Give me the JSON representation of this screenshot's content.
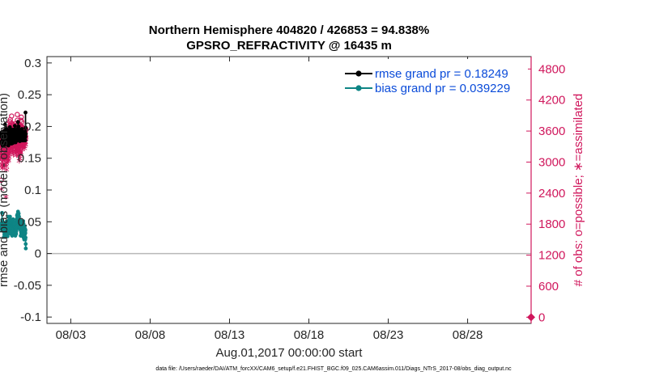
{
  "chart_data": {
    "type": "line",
    "title_line1": "Northern Hemisphere 404820 / 426853 = 94.838%",
    "title_line2": "GPSRO_REFRACTIVITY @ 16435 m",
    "xlabel": "Aug.01,2017 00:00:00 start",
    "ylabel_left": "rmse and bias (model - observation)",
    "ylabel_right": "# of obs: o=possible; ∗=assimilated",
    "footnote": "data file: /Users/raeder/DAI/ATM_forcXX/CAM6_setup/f.e21.FHIST_BGC.f09_025.CAM6assim.011/Diags_NTrS_2017-08/obs_diag_output.nc",
    "x_ticks": [
      "08/03",
      "08/08",
      "08/13",
      "08/18",
      "08/23",
      "08/28"
    ],
    "x_tick_days": [
      3,
      8,
      13,
      18,
      23,
      28
    ],
    "xlim_days": [
      1.5,
      32.0
    ],
    "ylim_left": [
      -0.11,
      0.31
    ],
    "y_ticks_left": [
      "-0.1",
      "-0.05",
      "0",
      "0.05",
      "0.1",
      "0.15",
      "0.2",
      "0.25",
      "0.3"
    ],
    "y_tick_values_left": [
      -0.1,
      -0.05,
      0,
      0.05,
      0.1,
      0.15,
      0.2,
      0.25,
      0.3
    ],
    "ylim_right": [
      -120,
      5040
    ],
    "y_ticks_right": [
      "0",
      "600",
      "1200",
      "1800",
      "2400",
      "3000",
      "3600",
      "4200",
      "4800"
    ],
    "y_tick_values_right": [
      0,
      600,
      1200,
      1800,
      2400,
      3000,
      3600,
      4200,
      4800
    ],
    "zero_line": 0,
    "legend": {
      "position": "top-right",
      "rmse_label": "rmse grand pr = 0.18249",
      "bias_label": "bias grand pr = 0.039229"
    },
    "colors": {
      "rmse": "#000000",
      "bias": "#0e8585",
      "obs": "#d0175c",
      "legend_text": "#0a4bd9",
      "zero_line": "#b8b8b8"
    },
    "series": [
      {
        "name": "rmse",
        "axis": "left",
        "values": [
          0.188,
          0.176,
          0.184,
          0.175,
          0.191,
          0.183,
          0.172,
          0.185,
          0.178,
          0.187,
          0.17,
          0.182,
          0.176,
          0.184,
          0.179,
          0.186,
          0.172,
          0.183,
          0.188,
          0.181,
          0.193,
          0.176,
          0.184,
          0.171,
          0.181,
          0.187,
          0.179,
          0.182,
          0.203,
          0.185,
          0.177,
          0.182,
          0.189,
          0.172,
          0.186,
          0.179,
          0.197,
          0.183,
          0.178,
          0.188,
          0.185,
          0.176,
          0.191,
          0.179,
          0.173,
          0.182,
          0.187,
          0.194,
          0.178,
          0.183,
          0.175,
          0.186,
          0.17,
          0.18,
          0.188,
          0.177,
          0.184,
          0.192,
          0.181,
          0.176,
          0.187,
          0.179,
          0.185,
          0.199,
          0.182,
          0.177,
          0.188,
          0.181,
          0.174,
          0.185,
          0.192,
          0.178,
          0.183,
          0.188,
          0.186,
          0.173,
          0.181,
          0.189,
          0.195,
          0.176,
          0.182,
          0.187,
          0.179,
          0.184,
          0.178,
          0.19,
          0.174,
          0.183,
          0.187,
          0.181,
          0.186,
          0.178,
          0.195,
          0.184,
          0.176,
          0.19,
          0.182,
          0.188,
          0.177,
          0.185,
          0.201,
          0.183,
          0.179,
          0.189,
          0.186,
          0.175,
          0.188,
          0.182,
          0.192,
          0.178,
          0.185,
          0.19,
          0.194,
          0.18,
          0.187,
          0.183,
          0.178,
          0.196,
          0.188,
          0.182,
          0.186,
          0.181,
          0.193,
          0.207,
          0.184,
          0.191,
          0.186,
          0.2,
          0.185,
          0.179,
          0.19,
          0.186,
          0.195,
          0.181,
          0.188,
          0.183,
          0.177,
          0.184,
          0.191,
          0.186,
          0.18,
          0.188,
          0.182,
          0.192,
          0.185,
          0.179,
          0.187,
          0.181,
          0.193,
          0.183,
          0.178,
          0.189,
          0.196,
          0.181,
          0.187,
          0.184,
          0.178,
          0.192,
          0.185,
          0.18,
          0.187,
          0.182,
          0.186,
          0.181,
          0.188,
          0.178,
          0.186,
          0.183,
          0.189,
          0.18,
          0.186,
          0.183,
          0.179,
          0.187,
          0.182,
          0.192,
          0.178,
          0.184,
          0.222,
          0.198,
          0.188
        ]
      },
      {
        "name": "bias",
        "axis": "left",
        "values": [
          0.043,
          0.038,
          0.045,
          0.044,
          0.046,
          0.039,
          0.049,
          0.064,
          0.053,
          0.044,
          0.041,
          0.045,
          0.039,
          0.042,
          0.044,
          0.036,
          0.041,
          0.04,
          0.037,
          0.043,
          0.039,
          0.041,
          0.035,
          0.038,
          0.026,
          0.039,
          0.034,
          0.043,
          0.03,
          0.041,
          0.045,
          0.036,
          0.038,
          0.027,
          0.046,
          0.04,
          0.036,
          0.042,
          0.048,
          0.037,
          0.043,
          0.031,
          0.047,
          0.044,
          0.041,
          0.05,
          0.039,
          0.034,
          0.047,
          0.037,
          0.039,
          0.049,
          0.043,
          0.03,
          0.048,
          0.038,
          0.044,
          0.027,
          0.041,
          0.044,
          0.038,
          0.049,
          0.04,
          0.036,
          0.058,
          0.052,
          0.044,
          0.039,
          0.046,
          0.032,
          0.041,
          0.044,
          0.037,
          0.052,
          0.039,
          0.044,
          0.051,
          0.036,
          0.048,
          0.058,
          0.049,
          0.038,
          0.045,
          0.054,
          0.041,
          0.036,
          0.031,
          0.043,
          0.047,
          0.033,
          0.045,
          0.039,
          0.052,
          0.041,
          0.046,
          0.03,
          0.039,
          0.043,
          0.028,
          0.04,
          0.045,
          0.049,
          0.044,
          0.052,
          0.036,
          0.047,
          0.048,
          0.054,
          0.046,
          0.039,
          0.043,
          0.049,
          0.041,
          0.044,
          0.047,
          0.043,
          0.046,
          0.049,
          0.047,
          0.03,
          0.042,
          0.036,
          0.041,
          0.033,
          0.039,
          0.03,
          0.044,
          0.028,
          0.04,
          0.036,
          0.038,
          0.034,
          0.037,
          0.036,
          0.031,
          0.035,
          0.043,
          0.044,
          0.052,
          0.045,
          0.054,
          0.04,
          0.06,
          0.048,
          0.056,
          0.051,
          0.042,
          0.062,
          0.049,
          0.051,
          0.044,
          0.066,
          0.056,
          0.047,
          0.06,
          0.054,
          0.045,
          0.063,
          0.052,
          0.043,
          0.058,
          0.045,
          0.048,
          0.04,
          0.048,
          0.046,
          0.046,
          0.038,
          0.045,
          0.053,
          0.038,
          0.05,
          0.04,
          0.038,
          0.045,
          0.028,
          0.046,
          0.042,
          0.034,
          0.043,
          0.032,
          0.049,
          0.041,
          0.029,
          0.044,
          0.038,
          0.043,
          0.028,
          0.04,
          0.04,
          0.046,
          0.03,
          0.044,
          0.036,
          0.04,
          0.027,
          0.042,
          0.032,
          0.051,
          0.035,
          0.047,
          0.04,
          0.025,
          0.043,
          0.031,
          0.034,
          0.038,
          0.022,
          0.04,
          0.035,
          0.031,
          0.043,
          0.03,
          0.026,
          0.039,
          0.034,
          0.022,
          0.032,
          0.037,
          0.025,
          0.015,
          0.008
        ]
      },
      {
        "name": "obs possible",
        "axis": "right",
        "marker": "o",
        "values": [
          2650,
          3350,
          3420,
          3120,
          3260,
          3330,
          3400,
          3180,
          3060,
          3520,
          3440,
          3120,
          3260,
          3430,
          3080,
          3290,
          3520,
          3480,
          3240,
          3330,
          3410,
          3270,
          3460,
          3590,
          3490,
          3350,
          3320,
          3310,
          3260,
          3600,
          3480,
          3320,
          3470,
          3140,
          3500,
          3040,
          3270,
          3420,
          3100,
          3160,
          3030,
          3340,
          3380,
          3450,
          3730,
          3310,
          3360,
          3220,
          3190,
          3560,
          3300,
          3530,
          3240,
          3470,
          3600,
          3210,
          3320,
          3440,
          3280,
          3530,
          3570,
          3550,
          3620,
          3350,
          3460,
          3360,
          3420,
          3780,
          3720,
          3820,
          3510,
          3440,
          3620,
          3600,
          3560,
          3460,
          3600,
          3490,
          3640,
          3890,
          3750,
          3610,
          3490,
          3560,
          3380,
          3410,
          3520,
          3620,
          3730,
          3380,
          3710,
          3570,
          3440,
          3310,
          3530,
          3610,
          3620,
          3590,
          3570,
          3520,
          3480,
          3550,
          3600,
          3640,
          3430,
          3380,
          3570,
          3740,
          3420,
          3380,
          3560,
          3490,
          3420,
          3470,
          3580,
          3360,
          3300,
          3490,
          3600,
          3700,
          3400,
          3660,
          3920,
          3810,
          3440,
          3730,
          3640,
          3560,
          3540,
          3610,
          3350,
          3380,
          3300,
          3600,
          3480,
          3700,
          3570,
          3540,
          3200,
          3400,
          3320,
          3170,
          3500,
          3560,
          3380,
          3310,
          3710,
          3500,
          3640,
          3350,
          3810,
          3690,
          3530,
          3870,
          3570,
          3520,
          3780,
          3590,
          3680,
          3550,
          3410,
          3610,
          3470,
          3560,
          3580,
          3480,
          3650,
          3520,
          3460,
          3610,
          3590,
          3470,
          3560,
          3610,
          3540,
          3650,
          3430,
          3560,
          3470,
          3520,
          3540,
          3510,
          3620,
          3560,
          3500,
          3610,
          3620,
          3640
        ]
      },
      {
        "name": "obs assimilated",
        "axis": "right",
        "marker": "*",
        "values": [
          2450,
          3160,
          3240,
          2920,
          3060,
          3140,
          3200,
          2980,
          2860,
          3320,
          3250,
          2920,
          3060,
          3240,
          2880,
          3100,
          3320,
          3290,
          3050,
          3130,
          3220,
          3080,
          3270,
          3400,
          3300,
          3160,
          3120,
          3120,
          3060,
          3410,
          3290,
          3120,
          3280,
          2940,
          3310,
          2300,
          3070,
          3230,
          2900,
          2960,
          2830,
          3150,
          3190,
          3260,
          3540,
          3110,
          3170,
          3020,
          2990,
          3370,
          3100,
          3340,
          3040,
          3280,
          3410,
          3010,
          3130,
          3250,
          3080,
          3340,
          3380,
          3360,
          3430,
          3150,
          3270,
          3160,
          3230,
          3590,
          3530,
          3640,
          3320,
          3250,
          3430,
          3410,
          3370,
          3260,
          3410,
          3300,
          3450,
          3710,
          3560,
          3420,
          3300,
          3370,
          3190,
          3220,
          3330,
          3430,
          3540,
          3180,
          3520,
          3380,
          3250,
          3120,
          3340,
          3420,
          3430,
          3400,
          3380,
          3330,
          3290,
          3360,
          3410,
          3450,
          3240,
          3190,
          3380,
          3560,
          3230,
          3180,
          3370,
          3300,
          3230,
          3280,
          3390,
          3160,
          3110,
          3300,
          3410,
          3510,
          3200,
          3470,
          3740,
          3630,
          3250,
          3540,
          3450,
          3370,
          3350,
          3420,
          3160,
          3190,
          3100,
          3410,
          3290,
          3510,
          3380,
          3350,
          3000,
          3210,
          3130,
          3050,
          3310,
          3370,
          3190,
          3120,
          3520,
          3310,
          3450,
          3160,
          3620,
          3500,
          3340,
          3680,
          3380,
          3330,
          3590,
          3400,
          3490,
          3360,
          3220,
          3420,
          3280,
          3370,
          3390,
          3290,
          3460,
          3330,
          3270,
          3420,
          3400,
          3280,
          3370,
          3420,
          3350,
          3460,
          3240,
          3370,
          3280,
          3330,
          3350,
          3320,
          3430,
          3370,
          3310,
          3420,
          3430,
          3450
        ]
      },
      {
        "name": "obs final point",
        "axis": "right",
        "marker": "diamond",
        "x_day": 32.0,
        "value": 0
      }
    ]
  }
}
